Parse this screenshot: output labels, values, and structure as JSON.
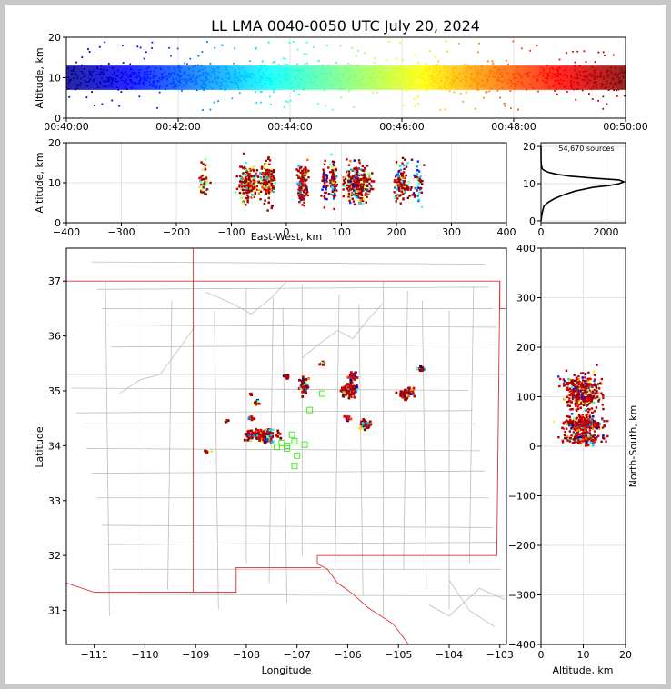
{
  "chart_data": [
    {
      "id": "time_altitude",
      "type": "scatter",
      "title": "LL LMA 0040-0050 UTC July 20, 2024",
      "xlabel": "",
      "ylabel": "Altitude, km",
      "x_ticks": [
        "00:40:00",
        "00:42:00",
        "00:44:00",
        "00:46:00",
        "00:48:00",
        "00:50:00"
      ],
      "x_range_minutes": [
        0,
        10
      ],
      "ylim": [
        0,
        20
      ],
      "y_ticks": [
        0,
        10,
        20
      ],
      "colormap": "jet (by time)",
      "grid": true
    },
    {
      "id": "eastwest_altitude",
      "type": "scatter",
      "xlabel": "East-West, km",
      "ylabel": "Altitude, km",
      "xlim": [
        -400,
        400
      ],
      "x_ticks": [
        -400,
        -300,
        -200,
        -100,
        0,
        100,
        200,
        300,
        400
      ],
      "ylim": [
        0,
        20
      ],
      "y_ticks": [
        0,
        10,
        20
      ],
      "clusters_x_km": [
        -150,
        -70,
        -35,
        30,
        70,
        85,
        130,
        210,
        240
      ],
      "grid": true
    },
    {
      "id": "altitude_histogram",
      "type": "line",
      "annotation": "54,670 sources",
      "xlim": [
        0,
        2600
      ],
      "x_ticks": [
        0,
        2000
      ],
      "ylim": [
        -0.5,
        21
      ],
      "y_ticks": [
        0,
        10,
        20
      ],
      "profile": [
        [
          0,
          0
        ],
        [
          2,
          30
        ],
        [
          4,
          90
        ],
        [
          5,
          220
        ],
        [
          6,
          420
        ],
        [
          7,
          700
        ],
        [
          8,
          1050
        ],
        [
          9,
          1600
        ],
        [
          9.5,
          2100
        ],
        [
          10,
          2400
        ],
        [
          10.5,
          2550
        ],
        [
          11,
          2400
        ],
        [
          11.5,
          1600
        ],
        [
          12,
          900
        ],
        [
          12.5,
          500
        ],
        [
          13,
          250
        ],
        [
          13.5,
          110
        ],
        [
          14,
          40
        ],
        [
          15,
          12
        ],
        [
          16,
          4
        ],
        [
          18,
          1
        ],
        [
          20,
          0
        ]
      ],
      "grid": true
    },
    {
      "id": "plan_view",
      "type": "scatter",
      "xlabel": "Longitude",
      "ylabel": "Latitude",
      "xlim": [
        -111.55,
        -102.87
      ],
      "ylim": [
        30.38,
        37.6
      ],
      "x_ticks": [
        -111,
        -110,
        -109,
        -108,
        -107,
        -106,
        -105,
        -104,
        -103
      ],
      "y_ticks": [
        31,
        32,
        33,
        34,
        35,
        36,
        37
      ],
      "stations": [
        [
          -106.5,
          34.95
        ],
        [
          -107.4,
          33.98
        ],
        [
          -107.3,
          34.05
        ],
        [
          -107.2,
          34.0
        ],
        [
          -107.1,
          34.2
        ],
        [
          -107.05,
          34.08
        ],
        [
          -107.0,
          33.82
        ],
        [
          -107.05,
          33.63
        ],
        [
          -106.85,
          34.02
        ],
        [
          -106.75,
          34.65
        ],
        [
          -107.2,
          33.95
        ]
      ],
      "grid": false
    },
    {
      "id": "altitude_northsouth",
      "type": "scatter",
      "xlabel": "Altitude, km",
      "ylabel": "North-South, km",
      "xlim": [
        0,
        20
      ],
      "x_ticks": [
        0,
        10,
        20
      ],
      "ylim": [
        -400,
        400
      ],
      "y_ticks": [
        -400,
        -300,
        -200,
        -100,
        0,
        100,
        200,
        300,
        400
      ],
      "grid": true
    }
  ]
}
